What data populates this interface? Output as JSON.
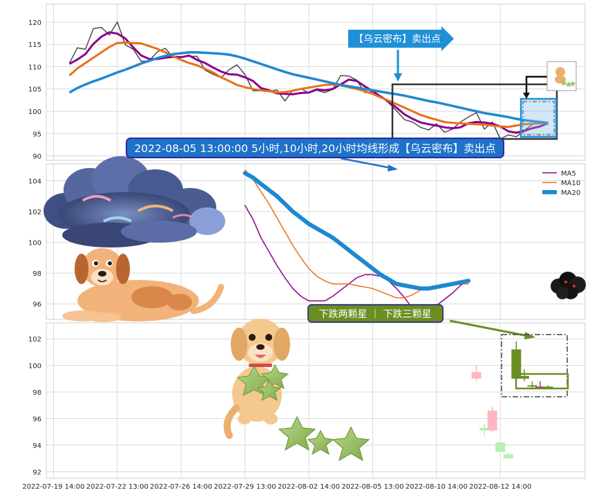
{
  "chart_data": [
    {
      "panel": "top",
      "type": "line",
      "ylim": [
        89,
        124
      ],
      "yticks": [
        90,
        95,
        100,
        105,
        110,
        115,
        120
      ],
      "grid": true,
      "series": [
        {
          "role": "price",
          "color": "#4a4a4a",
          "values": [
            110.8,
            114.2,
            113.9,
            118.5,
            118.8,
            117.1,
            120.0,
            114.9,
            113.9,
            111.2,
            111.3,
            113.3,
            114.1,
            112.1,
            112.2,
            112.3,
            112.3,
            109.2,
            108.3,
            107.5,
            109.3,
            110.4,
            108.2,
            104.6,
            104.6,
            104.4,
            104.8,
            102.3,
            104.7,
            105.1,
            104.1,
            104.7,
            104.2,
            104.9,
            108.0,
            107.9,
            107.0,
            104.2,
            104.4,
            103.3,
            101.9,
            100.1,
            98.1,
            97.6,
            96.4,
            95.8,
            97.2,
            95.3,
            96.0,
            97.6,
            98.7,
            99.7,
            96.0,
            97.6,
            93.8,
            94.7,
            94.3,
            95.7,
            97.0,
            97.6,
            97.0
          ]
        },
        {
          "role": "ma5",
          "color": "#8b008b",
          "values": [
            110.6,
            111.6,
            112.8,
            115.1,
            116.7,
            117.7,
            117.4,
            116.3,
            114.3,
            112.5,
            111.7,
            111.7,
            112.0,
            112.2,
            112.1,
            112.5,
            111.5,
            110.8,
            109.8,
            108.9,
            108.3,
            108.2,
            107.6,
            106.8,
            105.2,
            104.7,
            104.0,
            103.9,
            103.8,
            104.1,
            104.2,
            104.9,
            104.7,
            105.0,
            106.0,
            107.1,
            106.8,
            105.6,
            104.5,
            103.3,
            102.2,
            100.8,
            99.3,
            98.3,
            97.5,
            97.1,
            96.8,
            96.4,
            96.2,
            96.4,
            97.3,
            97.6,
            97.5,
            97.2,
            96.6,
            95.5,
            95.2,
            95.6,
            96.2,
            96.6,
            97.4
          ]
        },
        {
          "role": "ma10",
          "color": "#e8701a",
          "values": [
            108.0,
            109.6,
            110.8,
            112.0,
            113.2,
            114.4,
            115.3,
            115.4,
            115.3,
            115.2,
            114.6,
            114.0,
            113.2,
            112.3,
            111.5,
            110.8,
            110.3,
            109.5,
            108.7,
            107.6,
            106.8,
            105.9,
            105.4,
            105.0,
            104.7,
            104.5,
            104.2,
            104.3,
            104.6,
            105.0,
            105.3,
            105.6,
            105.9,
            106.0,
            105.8,
            105.4,
            105.0,
            104.5,
            103.9,
            103.1,
            102.4,
            101.6,
            100.8,
            100.0,
            99.2,
            98.6,
            98.1,
            97.6,
            97.4,
            97.3,
            97.2,
            97.1,
            97.0,
            96.8,
            96.6,
            96.5,
            96.8,
            97.1,
            97.2,
            97.3,
            97.3
          ]
        },
        {
          "role": "ma20",
          "color": "#1e88d0",
          "values": [
            104.2,
            105.2,
            106.0,
            106.7,
            107.3,
            108.0,
            108.7,
            109.3,
            110.0,
            110.7,
            111.3,
            111.9,
            112.4,
            112.8,
            113.0,
            113.2,
            113.2,
            113.1,
            113.0,
            112.9,
            112.7,
            112.3,
            111.8,
            111.2,
            110.6,
            110.0,
            109.4,
            108.8,
            108.3,
            107.9,
            107.5,
            107.1,
            106.7,
            106.3,
            105.9,
            105.6,
            105.3,
            105.0,
            104.7,
            104.4,
            104.1,
            103.8,
            103.5,
            103.1,
            102.7,
            102.3,
            102.0,
            101.6,
            101.2,
            100.8,
            100.4,
            100.0,
            99.6,
            99.3,
            99.0,
            98.7,
            98.3,
            98.0,
            97.8,
            97.6,
            97.4
          ]
        }
      ]
    },
    {
      "panel": "middle",
      "type": "line",
      "ylim": [
        95,
        105.1
      ],
      "yticks": [
        96,
        98,
        100,
        102,
        104
      ],
      "grid": true,
      "legend_position": "top-right",
      "x_start": 22,
      "x_end": 60,
      "series": [
        {
          "name": "MA5",
          "color": "#8b008b",
          "width": 1.5,
          "values": [
            102.4,
            101.5,
            100.3,
            99.4,
            98.5,
            97.7,
            97.0,
            96.5,
            96.2,
            96.2,
            96.2,
            96.5,
            96.9,
            97.3,
            97.7,
            97.9,
            97.9,
            97.8,
            97.5,
            97.0,
            96.4,
            95.7,
            95.4,
            95.5,
            95.9,
            96.3,
            96.7,
            97.2,
            97.6
          ]
        },
        {
          "name": "MA10",
          "color": "#e8701a",
          "width": 1.5,
          "values": [
            104.7,
            104.1,
            103.3,
            102.5,
            101.6,
            100.7,
            99.8,
            99.0,
            98.3,
            97.8,
            97.5,
            97.3,
            97.3,
            97.3,
            97.2,
            97.1,
            97.0,
            96.8,
            96.6,
            96.4,
            96.4,
            96.6,
            96.9,
            97.1,
            97.2,
            97.2,
            97.2,
            97.3,
            97.3
          ]
        },
        {
          "name": "MA20",
          "color": "#1e88d0",
          "width": 6,
          "values": [
            104.5,
            104.2,
            103.8,
            103.4,
            103.0,
            102.5,
            102.0,
            101.6,
            101.2,
            100.9,
            100.6,
            100.3,
            99.9,
            99.5,
            99.1,
            98.7,
            98.3,
            97.9,
            97.6,
            97.3,
            97.2,
            97.1,
            97.0,
            97.0,
            97.1,
            97.2,
            97.3,
            97.4,
            97.5
          ]
        }
      ]
    },
    {
      "panel": "bottom",
      "type": "candlestick",
      "ylim": [
        91.5,
        103.2
      ],
      "yticks": [
        92,
        94,
        96,
        98,
        100,
        102
      ],
      "grid": true,
      "candles": [
        {
          "x": 51,
          "open": 99.5,
          "close": 99.0,
          "high": 100.0,
          "low": 98.8,
          "color": "#ffb6c1"
        },
        {
          "x": 52,
          "open": 95.3,
          "close": 95.1,
          "high": 95.6,
          "low": 94.7,
          "color": "#b7f0b0"
        },
        {
          "x": 53,
          "open": 96.6,
          "close": 95.1,
          "high": 96.9,
          "low": 95.0,
          "color": "#ffb6c1"
        },
        {
          "x": 54,
          "open": 94.2,
          "close": 93.5,
          "high": 94.3,
          "low": 93.5,
          "color": "#b7f0b0"
        },
        {
          "x": 55,
          "open": 93.3,
          "close": 93.0,
          "high": 93.4,
          "low": 93.0,
          "color": "#b7f0b0"
        },
        {
          "x": 56,
          "open": 101.2,
          "close": 99.0,
          "high": 101.8,
          "low": 98.5,
          "color": "#6b8e23"
        },
        {
          "x": 57,
          "open": 99.2,
          "close": 99.0,
          "high": 99.7,
          "low": 98.8,
          "color": "#6b8e23"
        },
        {
          "x": 58,
          "open": 98.5,
          "close": 98.4,
          "high": 98.8,
          "low": 98.2,
          "color": "#6b8e23"
        },
        {
          "x": 59,
          "open": 98.4,
          "close": 98.4,
          "high": 98.8,
          "low": 98.2,
          "color": "#b03060"
        },
        {
          "x": 60,
          "open": 98.4,
          "close": 98.4,
          "high": 98.5,
          "low": 98.3,
          "color": "#6b8e23"
        }
      ]
    }
  ],
  "x_axis": {
    "ticks": [
      {
        "x": -2,
        "label": "2022-07-19 14:00"
      },
      {
        "x": 6,
        "label": "2022-07-22 13:00"
      },
      {
        "x": 14,
        "label": "2022-07-26 14:00"
      },
      {
        "x": 22,
        "label": "2022-07-29 13:00"
      },
      {
        "x": 30,
        "label": "2022-08-02 14:00"
      },
      {
        "x": 38,
        "label": "2022-08-05 13:00"
      },
      {
        "x": 46,
        "label": "2022-08-10 14:00"
      },
      {
        "x": 54,
        "label": "2022-08-12 14:00"
      }
    ]
  },
  "annotations": {
    "top_label": "【乌云密布】卖出点",
    "banner": "2022-08-05 13:00:00 5小时,10小时,20小时均线形成【乌云密布】卖出点",
    "bottom_label": "下跌两颗星 ｜ 下跌三颗星"
  },
  "colors": {
    "grid": "#d9d9d9",
    "axis_text": "#262626",
    "callout_blue": "#1f8fd8",
    "banner_fill": "#1e72c8",
    "banner_border": "#2a2aa0",
    "green_box": "#6b8e23"
  },
  "images": {
    "cloud": "storm-cloud-illustration",
    "dog_lying": "lying-dog-illustration",
    "dog_stars": "dog-holding-stars-illustration",
    "stars": "green-star-shapes",
    "dark_cloud_marker": "dark-cloud-marker",
    "thumbnail": "dog-thumbnail"
  }
}
